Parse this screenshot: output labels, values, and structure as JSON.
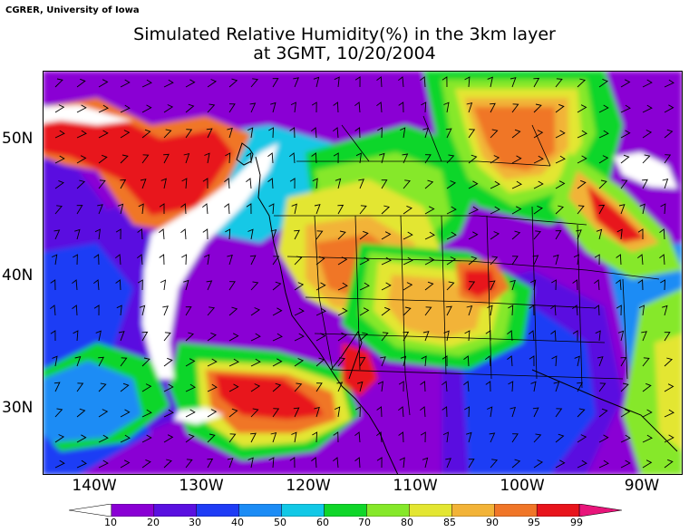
{
  "header": {
    "credit": "CGRER, University of Iowa",
    "title_line1": "Simulated Relative Humidity(%) in the 3km layer",
    "title_line2": "at 3GMT, 10/20/2004"
  },
  "map": {
    "lat_labels": [
      "50N",
      "40N",
      "30N"
    ],
    "lon_labels": [
      "140W",
      "130W",
      "120W",
      "110W",
      "100W",
      "90W"
    ]
  },
  "colorbar": {
    "labels": [
      "10",
      "20",
      "30",
      "40",
      "50",
      "60",
      "70",
      "80",
      "85",
      "90",
      "95",
      "99"
    ],
    "colors": [
      "#ffffff",
      "#8a00d4",
      "#5a10e0",
      "#1f3cf5",
      "#1c8cf5",
      "#12c8e6",
      "#10d62a",
      "#86e82a",
      "#e3e632",
      "#f2b338",
      "#f07628",
      "#e8141c",
      "#e8147a"
    ]
  },
  "palette": {
    "white": "#ffffff",
    "purple": "#8a00d4",
    "indigo": "#5a10e0",
    "blue": "#1f3cf5",
    "sky": "#1c8cf5",
    "cyan": "#12c8e6",
    "green": "#10d62a",
    "lime": "#86e82a",
    "yellow": "#e3e632",
    "amber": "#f2b338",
    "orange": "#f07628",
    "red": "#e8141c"
  }
}
